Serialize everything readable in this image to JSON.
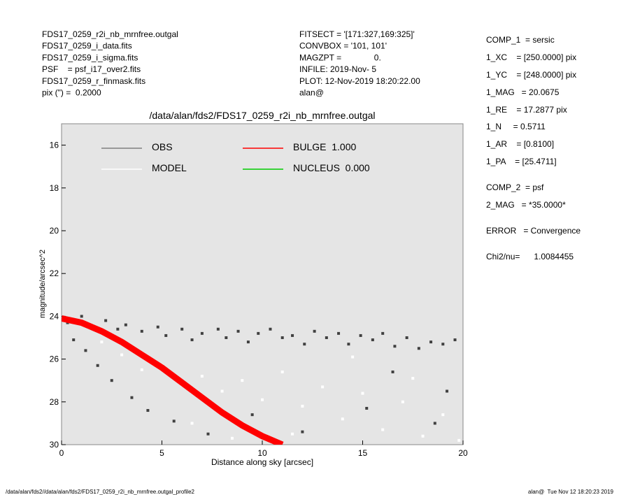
{
  "header": {
    "left": [
      "FDS17_0259_r2i_nb_mrnfree.outgal",
      "FDS17_0259_i_data.fits",
      "FDS17_0259_i_sigma.fits",
      "PSF    = psf_i17_over2.fits",
      "FDS17_0259_r_finmask.fits",
      "pix (\") =  0.2000"
    ],
    "middle": [
      "FITSECT = '[171:327,169:325]'",
      "CONVBOX = '101, 101'",
      "MAGZPT =              0.",
      "INFILE: 2019-Nov- 5",
      "PLOT: 12-Nov-2019 18:20:22.00",
      "alan@"
    ],
    "right": [
      "COMP_1  = sersic",
      "1_XC    = [250.0000] pix",
      "1_YC    = [248.0000] pix",
      "1_MAG   = 20.0675",
      "1_RE    = 17.2877 pix",
      "1_N     = 0.5711",
      "1_AR    = [0.8100]",
      "1_PA    = [25.4711]",
      "COMP_2  = psf",
      "2_MAG   = *35.0000*",
      "ERROR   = Convergence",
      "Chi2/nu=      1.0084455"
    ]
  },
  "chart_data": {
    "type": "scatter",
    "title": "/data/alan/fds2/FDS17_0259_r2i_nb_mrnfree.outgal",
    "x_label": "Distance along sky [arcsec]",
    "y_label": "magnitude/arcsec^2",
    "xlim": [
      0,
      20
    ],
    "ylim": [
      30,
      15
    ],
    "xticks": [
      0,
      5,
      10,
      15,
      20
    ],
    "yticks": [
      16,
      18,
      20,
      22,
      24,
      26,
      28,
      30
    ],
    "series": [
      {
        "name": "OBS",
        "color": "#404040",
        "legend_color": "#808080",
        "x": [
          0.3,
          0.6,
          1.0,
          1.2,
          1.5,
          1.8,
          2.2,
          2.5,
          2.8,
          3.2,
          3.5,
          4.0,
          4.3,
          4.8,
          5.2,
          5.6,
          6.0,
          6.5,
          7.0,
          7.3,
          7.8,
          8.2,
          8.8,
          9.3,
          9.8,
          10.4,
          11.0,
          11.5,
          12.1,
          12.6,
          13.2,
          13.8,
          14.3,
          14.9,
          15.5,
          16.0,
          16.6,
          17.2,
          17.8,
          18.4,
          19.0,
          19.6,
          19.2,
          18.6,
          15.2,
          12.0,
          16.5,
          9.5
        ],
        "values": [
          24.3,
          25.1,
          24.0,
          25.6,
          24.5,
          26.3,
          24.2,
          27.0,
          24.6,
          24.4,
          27.8,
          24.7,
          28.4,
          24.5,
          24.9,
          28.9,
          24.6,
          25.1,
          24.8,
          29.5,
          24.6,
          25.0,
          24.7,
          25.2,
          24.8,
          24.6,
          25.0,
          24.9,
          25.3,
          24.7,
          25.0,
          24.8,
          25.3,
          24.9,
          25.1,
          24.8,
          25.4,
          25.0,
          25.5,
          25.2,
          25.3,
          25.1,
          27.5,
          29.0,
          28.3,
          29.4,
          26.6,
          28.6
        ]
      },
      {
        "name": "MODEL",
        "color": "#ffffff",
        "x": [
          2.0,
          3.0,
          4.0,
          5.0,
          6.0,
          7.0,
          8.0,
          9.0,
          10.0,
          11.0,
          12.0,
          13.0,
          14.0,
          15.0,
          16.0,
          17.0,
          18.0,
          19.0,
          19.8,
          6.5,
          8.5,
          11.5,
          14.5,
          17.5
        ],
        "values": [
          25.2,
          25.8,
          26.5,
          26.3,
          27.2,
          26.8,
          27.5,
          27.0,
          27.9,
          26.6,
          28.2,
          27.3,
          28.8,
          27.6,
          29.3,
          28.0,
          29.6,
          28.6,
          29.8,
          29.0,
          29.7,
          29.5,
          25.9,
          26.9
        ]
      },
      {
        "name": "BULGE  1.000",
        "color": "#ff0000",
        "line": true,
        "x": [
          0,
          1,
          2,
          3,
          4,
          5,
          6,
          7,
          8,
          9,
          10,
          11
        ],
        "values": [
          24.1,
          24.3,
          24.7,
          25.2,
          25.8,
          26.4,
          27.1,
          27.8,
          28.5,
          29.1,
          29.6,
          30.0
        ]
      },
      {
        "name": "NUCLEUS  0.000",
        "color": "#00cc00",
        "x": [],
        "values": []
      }
    ]
  },
  "footer": {
    "left": "/data/alan/fds2//data/alan/fds2/FDS17_0259_r2i_nb_mrnfree.outgal_profile2",
    "right": "alan@  Tue Nov 12 18:20:23 2019"
  }
}
